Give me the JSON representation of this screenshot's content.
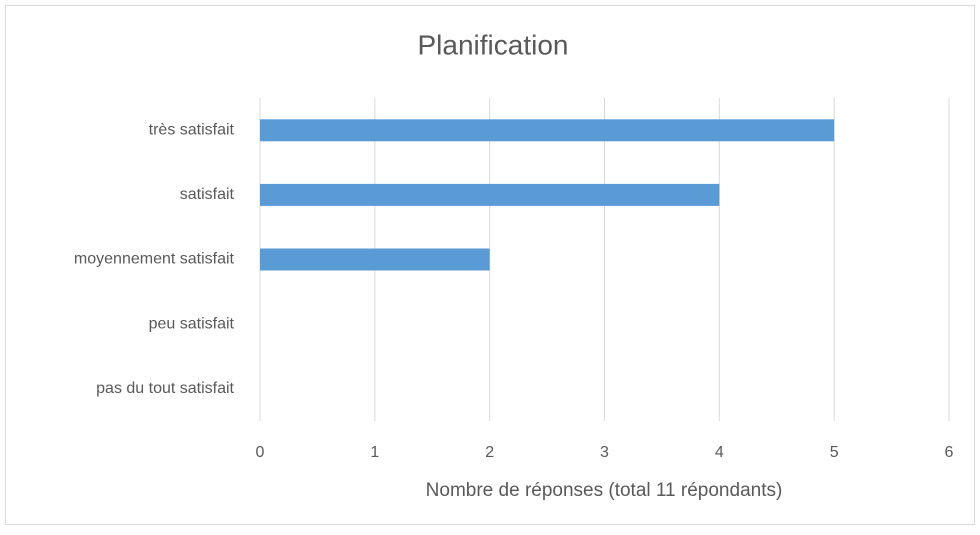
{
  "chart_data": {
    "type": "bar",
    "orientation": "horizontal",
    "title": "Planification",
    "x_label": "Nombre de réponses (total 11 répondants)",
    "categories": [
      "très satisfait",
      "satisfait",
      "moyennement satisfait",
      "peu satisfait",
      "pas du tout satisfait"
    ],
    "values": [
      5,
      4,
      2,
      0,
      0
    ],
    "color": "#5b9bd5",
    "xlim": [
      0,
      6
    ],
    "xticks": [
      0,
      1,
      2,
      3,
      4,
      5,
      6
    ],
    "grid": true
  }
}
